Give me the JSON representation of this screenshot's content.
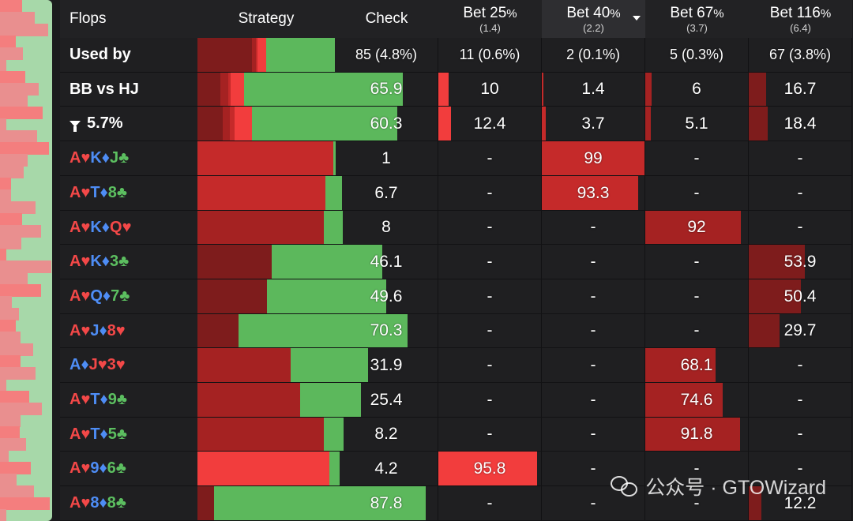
{
  "colors": {
    "check": "#5cb85c",
    "bet25": "#f23d3d",
    "bet40": "#c52a2a",
    "bet67": "#a52222",
    "bet116": "#7e1c1c",
    "watermark_icon": "wechat-icon"
  },
  "header": {
    "flops": "Flops",
    "strategy": "Strategy",
    "actions": [
      {
        "key": "check",
        "label": "Check",
        "pct": "",
        "sub": ""
      },
      {
        "key": "bet25",
        "label": "Bet 25",
        "pct": "%",
        "sub": "(1.4)"
      },
      {
        "key": "bet40",
        "label": "Bet 40",
        "pct": "%",
        "sub": "(2.2)",
        "sorted": true
      },
      {
        "key": "bet67",
        "label": "Bet 67",
        "pct": "%",
        "sub": "(3.7)"
      },
      {
        "key": "bet116",
        "label": "Bet 116",
        "pct": "%",
        "sub": "(6.4)"
      }
    ]
  },
  "rows": [
    {
      "type": "used",
      "name": "Used by",
      "values": [
        "85 (4.8%)",
        "11 (0.6%)",
        "2 (0.1%)",
        "5 (0.3%)",
        "67 (3.8%)"
      ],
      "mix": [
        3.8,
        0.3,
        0.1,
        0.6,
        4.8
      ]
    },
    {
      "type": "range",
      "name": "BB vs HJ",
      "values": [
        "65.9",
        "10",
        "1.4",
        "6",
        "16.7"
      ],
      "mix": [
        16.7,
        6,
        1.4,
        10,
        65.9
      ]
    },
    {
      "type": "filter",
      "name": "5.7%",
      "icon": "filter-icon",
      "values": [
        "60.3",
        "12.4",
        "3.7",
        "5.1",
        "18.4"
      ],
      "mix": [
        18.4,
        5.1,
        3.7,
        12.4,
        60.3
      ]
    },
    {
      "type": "flop",
      "cards": [
        {
          "r": "A",
          "s": "♥"
        },
        {
          "r": "K",
          "s": "♦"
        },
        {
          "r": "J",
          "s": "♣"
        }
      ],
      "values": [
        "1",
        "-",
        "99",
        "-",
        "-"
      ],
      "mix": [
        0,
        0,
        99,
        0,
        1
      ]
    },
    {
      "type": "flop",
      "cards": [
        {
          "r": "A",
          "s": "♥"
        },
        {
          "r": "T",
          "s": "♦"
        },
        {
          "r": "8",
          "s": "♣"
        }
      ],
      "values": [
        "6.7",
        "-",
        "93.3",
        "-",
        "-"
      ],
      "mix": [
        0,
        0,
        93.3,
        0,
        6.7
      ]
    },
    {
      "type": "flop",
      "cards": [
        {
          "r": "A",
          "s": "♥"
        },
        {
          "r": "K",
          "s": "♦"
        },
        {
          "r": "Q",
          "s": "♥"
        }
      ],
      "values": [
        "8",
        "-",
        "-",
        "92",
        "-"
      ],
      "mix": [
        0,
        92,
        0,
        0,
        8
      ]
    },
    {
      "type": "flop",
      "cards": [
        {
          "r": "A",
          "s": "♥"
        },
        {
          "r": "K",
          "s": "♦"
        },
        {
          "r": "3",
          "s": "♣"
        }
      ],
      "values": [
        "46.1",
        "-",
        "-",
        "-",
        "53.9"
      ],
      "mix": [
        53.9,
        0,
        0,
        0,
        46.1
      ]
    },
    {
      "type": "flop",
      "cards": [
        {
          "r": "A",
          "s": "♥"
        },
        {
          "r": "Q",
          "s": "♦"
        },
        {
          "r": "7",
          "s": "♣"
        }
      ],
      "values": [
        "49.6",
        "-",
        "-",
        "-",
        "50.4"
      ],
      "mix": [
        50.4,
        0,
        0,
        0,
        49.6
      ]
    },
    {
      "type": "flop",
      "cards": [
        {
          "r": "A",
          "s": "♥"
        },
        {
          "r": "J",
          "s": "♦"
        },
        {
          "r": "8",
          "s": "♥"
        }
      ],
      "values": [
        "70.3",
        "-",
        "-",
        "-",
        "29.7"
      ],
      "mix": [
        29.7,
        0,
        0,
        0,
        70.3
      ]
    },
    {
      "type": "flop",
      "cards": [
        {
          "r": "A",
          "s": "♦"
        },
        {
          "r": "J",
          "s": "♥"
        },
        {
          "r": "3",
          "s": "♥"
        }
      ],
      "values": [
        "31.9",
        "-",
        "-",
        "68.1",
        "-"
      ],
      "mix": [
        0,
        68.1,
        0,
        0,
        31.9
      ]
    },
    {
      "type": "flop",
      "cards": [
        {
          "r": "A",
          "s": "♥"
        },
        {
          "r": "T",
          "s": "♦"
        },
        {
          "r": "9",
          "s": "♣"
        }
      ],
      "values": [
        "25.4",
        "-",
        "-",
        "74.6",
        "-"
      ],
      "mix": [
        0,
        74.6,
        0,
        0,
        25.4
      ]
    },
    {
      "type": "flop",
      "cards": [
        {
          "r": "A",
          "s": "♥"
        },
        {
          "r": "T",
          "s": "♦"
        },
        {
          "r": "5",
          "s": "♣"
        }
      ],
      "values": [
        "8.2",
        "-",
        "-",
        "91.8",
        "-"
      ],
      "mix": [
        0,
        91.8,
        0,
        0,
        8.2
      ]
    },
    {
      "type": "flop",
      "cards": [
        {
          "r": "A",
          "s": "♥"
        },
        {
          "r": "9",
          "s": "♦"
        },
        {
          "r": "6",
          "s": "♣"
        }
      ],
      "values": [
        "4.2",
        "95.8",
        "-",
        "-",
        "-"
      ],
      "mix": [
        0,
        0,
        0,
        95.8,
        4.2
      ]
    },
    {
      "type": "flop",
      "cards": [
        {
          "r": "A",
          "s": "♥"
        },
        {
          "r": "8",
          "s": "♦"
        },
        {
          "r": "8",
          "s": "♣"
        }
      ],
      "values": [
        "87.8",
        "-",
        "-",
        "-",
        "12.2"
      ],
      "mix": [
        12.2,
        0,
        0,
        0,
        87.8
      ]
    }
  ],
  "watermark": {
    "text": "公众号 · GTOWizard"
  }
}
